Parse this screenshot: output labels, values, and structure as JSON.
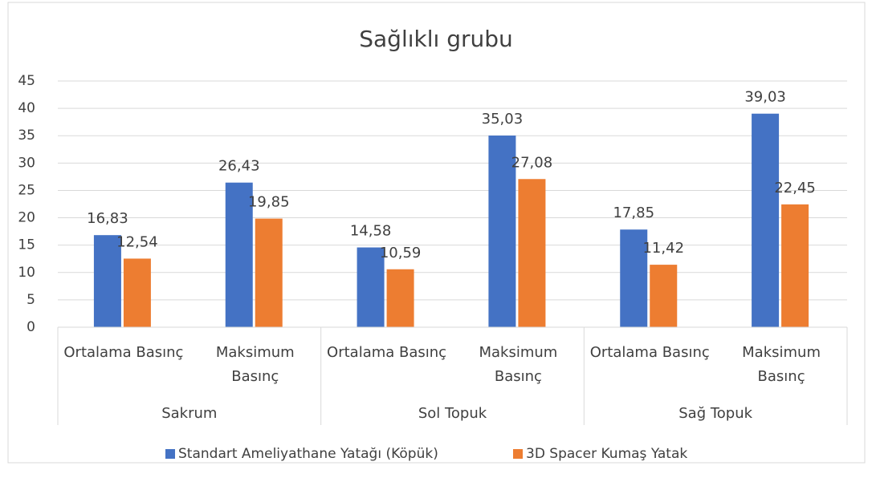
{
  "chart_data": {
    "type": "bar",
    "title": "Sağlıklı grubu",
    "groups": [
      {
        "name": "Sakrum",
        "categories": [
          "Ortalama Basınç",
          "Maksimum Basınç"
        ]
      },
      {
        "name": "Sol Topuk",
        "categories": [
          "Ortalama Basınç",
          "Maksimum Basınç"
        ]
      },
      {
        "name": "Sağ Topuk",
        "categories": [
          "Ortalama Basınç",
          "Maksimum Basınç"
        ]
      }
    ],
    "series": [
      {
        "name": "Standart Ameliyathane Yatağı (Köpük)",
        "color": "#4472c4",
        "values": [
          16.83,
          26.43,
          14.58,
          35.03,
          17.85,
          39.03
        ],
        "value_labels": [
          "16,83",
          "26,43",
          "14,58",
          "35,03",
          "17,85",
          "39,03"
        ]
      },
      {
        "name": "3D Spacer Kumaş Yatak",
        "color": "#ed7d31",
        "values": [
          12.54,
          19.85,
          10.59,
          27.08,
          11.42,
          22.45
        ],
        "value_labels": [
          "12,54",
          "19,85",
          "10,59",
          "27,08",
          "11,42",
          "22,45"
        ]
      }
    ],
    "ylim": [
      0,
      45
    ],
    "yticks": [
      0,
      5,
      10,
      15,
      20,
      25,
      30,
      35,
      40,
      45
    ],
    "grid": true,
    "legend": "bottom"
  }
}
